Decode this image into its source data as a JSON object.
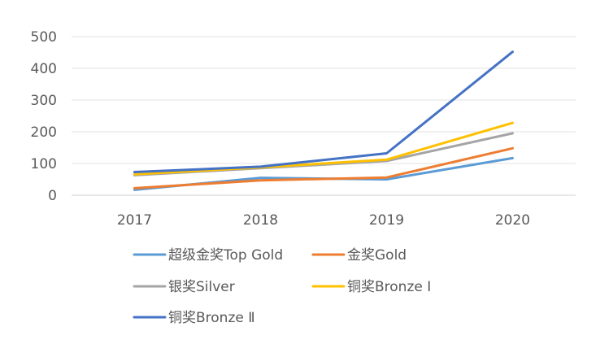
{
  "chart_data": {
    "type": "line",
    "title": "",
    "xlabel": "",
    "ylabel": "",
    "categories": [
      "2017",
      "2018",
      "2019",
      "2020"
    ],
    "ylim": [
      0,
      500
    ],
    "yticks": [
      0,
      100,
      200,
      300,
      400,
      500
    ],
    "grid": "horizontal",
    "legend_position": "bottom",
    "series": [
      {
        "name": "超级金奖Top Gold",
        "color": "#5b9bd5",
        "values": [
          17,
          55,
          50,
          117
        ]
      },
      {
        "name": "金奖Gold",
        "color": "#ed7d31",
        "values": [
          22,
          47,
          56,
          148
        ]
      },
      {
        "name": "银奖Silver",
        "color": "#a5a5a5",
        "values": [
          63,
          85,
          108,
          195
        ]
      },
      {
        "name": "铜奖Bronze Ⅰ",
        "color": "#ffc000",
        "values": [
          66,
          88,
          112,
          228
        ]
      },
      {
        "name": "铜奖Bronze Ⅱ",
        "color": "#4472c4",
        "values": [
          73,
          90,
          132,
          452
        ]
      }
    ]
  }
}
